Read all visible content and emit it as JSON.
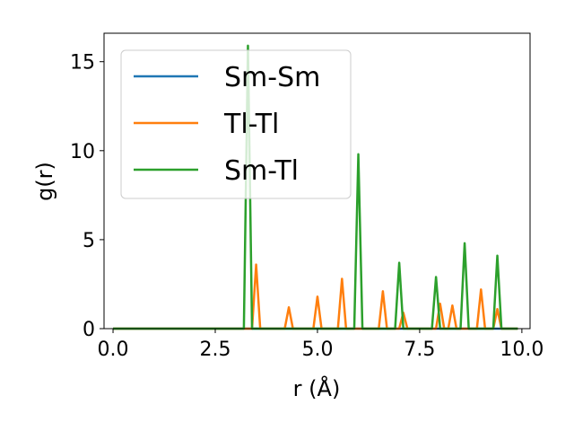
{
  "chart_data": {
    "type": "line",
    "xlabel": "r (Å)",
    "ylabel": "g(r)",
    "xlim": [
      -0.22,
      10.2
    ],
    "ylim": [
      0,
      16.6
    ],
    "xticks": [
      "0.0",
      "2.5",
      "5.0",
      "7.5",
      "10.0"
    ],
    "yticks": [
      "0",
      "5",
      "10",
      "15"
    ],
    "grid": false,
    "legend": "upper-left",
    "series": [
      {
        "name": "Sm-Sm",
        "color": "#1f77b4",
        "points": [
          [
            0,
            0
          ],
          [
            9.9,
            0
          ]
        ]
      },
      {
        "name": "Tl-Tl",
        "color": "#ff7f0e",
        "points": [
          [
            0,
            0
          ],
          [
            3.4,
            0
          ],
          [
            3.5,
            3.6
          ],
          [
            3.6,
            0
          ],
          [
            4.2,
            0
          ],
          [
            4.3,
            1.2
          ],
          [
            4.4,
            0
          ],
          [
            4.9,
            0
          ],
          [
            5.0,
            1.8
          ],
          [
            5.1,
            0
          ],
          [
            5.5,
            0
          ],
          [
            5.6,
            2.8
          ],
          [
            5.7,
            0
          ],
          [
            6.5,
            0
          ],
          [
            6.6,
            2.1
          ],
          [
            6.7,
            0
          ],
          [
            7.0,
            0
          ],
          [
            7.1,
            0.9
          ],
          [
            7.2,
            0
          ],
          [
            7.9,
            0
          ],
          [
            8.0,
            1.4
          ],
          [
            8.1,
            0
          ],
          [
            8.2,
            0
          ],
          [
            8.3,
            1.3
          ],
          [
            8.4,
            0
          ],
          [
            8.9,
            0
          ],
          [
            9.0,
            2.2
          ],
          [
            9.1,
            0
          ],
          [
            9.3,
            0
          ],
          [
            9.4,
            1.1
          ],
          [
            9.5,
            0
          ],
          [
            9.9,
            0
          ]
        ]
      },
      {
        "name": "Sm-Tl",
        "color": "#2ca02c",
        "points": [
          [
            0,
            0
          ],
          [
            3.2,
            0
          ],
          [
            3.3,
            15.9
          ],
          [
            3.4,
            0
          ],
          [
            5.9,
            0
          ],
          [
            6.0,
            9.8
          ],
          [
            6.1,
            0
          ],
          [
            6.9,
            0
          ],
          [
            7.0,
            3.7
          ],
          [
            7.1,
            0
          ],
          [
            7.8,
            0
          ],
          [
            7.9,
            2.9
          ],
          [
            8.0,
            0
          ],
          [
            8.5,
            0
          ],
          [
            8.6,
            4.8
          ],
          [
            8.7,
            0
          ],
          [
            9.3,
            0
          ],
          [
            9.4,
            4.1
          ],
          [
            9.5,
            0
          ],
          [
            9.9,
            0
          ]
        ]
      }
    ]
  }
}
